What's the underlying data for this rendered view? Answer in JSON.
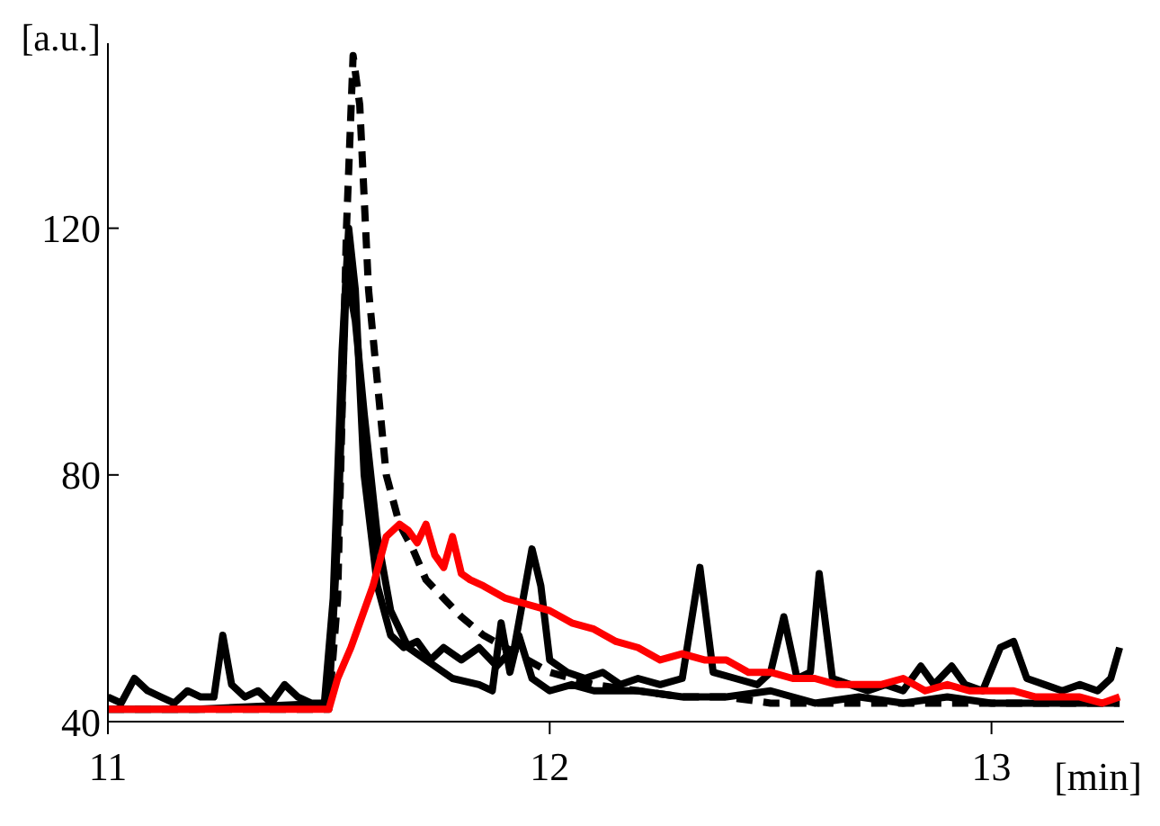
{
  "chart_data": {
    "type": "line",
    "xlabel": "[min]",
    "ylabel": "[a.u.]",
    "xlim": [
      11,
      13.3
    ],
    "ylim": [
      40,
      150
    ],
    "xticks": [
      11,
      12,
      13
    ],
    "yticks": [
      40,
      80,
      120
    ],
    "grid": false,
    "marker": "none",
    "series": [
      {
        "color": "#000000",
        "line_style": "solid",
        "x": [
          11.0,
          11.03,
          11.06,
          11.09,
          11.12,
          11.15,
          11.18,
          11.21,
          11.24,
          11.26,
          11.28,
          11.31,
          11.34,
          11.37,
          11.4,
          11.43,
          11.46,
          11.49,
          11.51,
          11.53,
          11.545,
          11.56,
          11.58,
          11.61,
          11.64,
          11.67,
          11.7,
          11.73,
          11.76,
          11.8,
          11.84,
          11.88,
          11.92,
          11.96,
          11.98,
          12.0,
          12.04,
          12.08,
          12.12,
          12.16,
          12.2,
          12.25,
          12.3,
          12.34,
          12.37,
          12.42,
          12.47,
          12.5,
          12.53,
          12.56,
          12.59,
          12.61,
          12.64,
          12.68,
          12.72,
          12.76,
          12.8,
          12.84,
          12.87,
          12.91,
          12.94,
          12.98,
          13.02,
          13.05,
          13.08,
          13.12,
          13.16,
          13.2,
          13.24,
          13.27,
          13.29
        ],
        "values": [
          44,
          43,
          47,
          45,
          44,
          43,
          45,
          44,
          44,
          54,
          46,
          44,
          45,
          43,
          46,
          44,
          43,
          43,
          60,
          100,
          120,
          110,
          80,
          62,
          54,
          52,
          53,
          50,
          52,
          50,
          52,
          49,
          52,
          68,
          62,
          50,
          48,
          47,
          48,
          46,
          47,
          46,
          47,
          65,
          48,
          47,
          46,
          48,
          57,
          47,
          48,
          64,
          47,
          46,
          45,
          46,
          45,
          49,
          46,
          49,
          46,
          45,
          52,
          53,
          47,
          46,
          45,
          46,
          45,
          47,
          52
        ]
      },
      {
        "color": "#000000",
        "line_style": "solid",
        "x": [
          11.0,
          11.2,
          11.5,
          11.52,
          11.54,
          11.56,
          11.58,
          11.61,
          11.64,
          11.68,
          11.72,
          11.78,
          11.84,
          11.87,
          11.89,
          11.91,
          11.93,
          11.96,
          12.0,
          12.05,
          12.1,
          12.2,
          12.3,
          12.4,
          12.5,
          12.6,
          12.7,
          12.8,
          12.9,
          13.0,
          13.1,
          13.2,
          13.29
        ],
        "values": [
          42,
          42,
          43,
          70,
          113,
          105,
          90,
          70,
          58,
          52,
          50,
          47,
          46,
          45,
          56,
          48,
          54,
          47,
          45,
          46,
          45,
          45,
          44,
          44,
          45,
          43,
          44,
          43,
          44,
          43,
          43,
          43,
          43
        ]
      },
      {
        "color": "#000000",
        "line_style": "dashed",
        "x": [
          11.0,
          11.3,
          11.5,
          11.52,
          11.54,
          11.555,
          11.57,
          11.59,
          11.61,
          11.63,
          11.66,
          11.69,
          11.72,
          11.76,
          11.8,
          11.85,
          11.9,
          11.95,
          12.0,
          12.05,
          12.1,
          12.2,
          12.3,
          12.4,
          12.5,
          12.6,
          12.7,
          12.8,
          12.9,
          13.0,
          13.1,
          13.2,
          13.29
        ],
        "values": [
          42,
          42,
          42,
          60,
          120,
          148,
          140,
          110,
          95,
          80,
          72,
          68,
          63,
          60,
          57,
          54,
          52,
          50,
          48,
          47,
          46,
          45,
          44,
          44,
          43,
          43,
          43,
          43,
          43,
          43,
          43,
          43,
          43
        ]
      },
      {
        "color": "#ff0000",
        "line_style": "solid",
        "x": [
          11.0,
          11.2,
          11.4,
          11.5,
          11.52,
          11.55,
          11.57,
          11.6,
          11.63,
          11.66,
          11.68,
          11.7,
          11.72,
          11.74,
          11.76,
          11.78,
          11.8,
          11.82,
          11.85,
          11.9,
          11.95,
          12.0,
          12.05,
          12.1,
          12.15,
          12.2,
          12.25,
          12.3,
          12.35,
          12.4,
          12.45,
          12.5,
          12.55,
          12.6,
          12.65,
          12.7,
          12.75,
          12.8,
          12.85,
          12.9,
          12.95,
          13.0,
          13.05,
          13.1,
          13.15,
          13.2,
          13.25,
          13.29
        ],
        "values": [
          42,
          42,
          42,
          42,
          47,
          52,
          56,
          62,
          70,
          72,
          71,
          69,
          72,
          67,
          65,
          70,
          64,
          63,
          62,
          60,
          59,
          58,
          56,
          55,
          53,
          52,
          50,
          51,
          50,
          50,
          48,
          48,
          47,
          47,
          46,
          46,
          46,
          47,
          45,
          46,
          45,
          45,
          45,
          44,
          44,
          44,
          43,
          44
        ]
      }
    ]
  }
}
